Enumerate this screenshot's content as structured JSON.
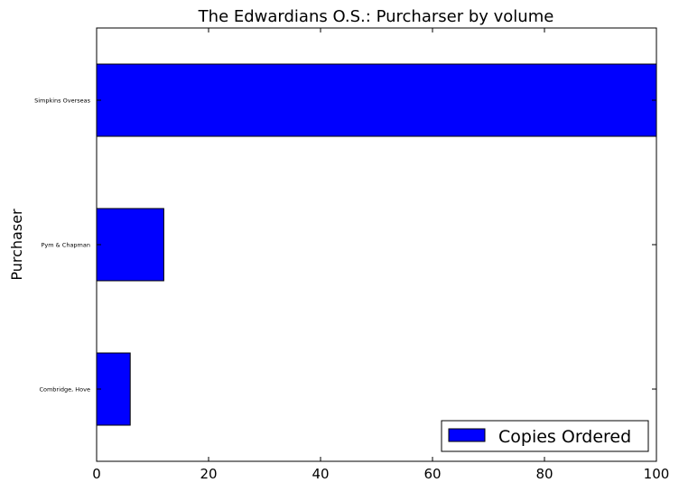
{
  "chart_data": {
    "type": "bar",
    "orientation": "horizontal",
    "title": "The Edwardians O.S.: Purcharser by volume",
    "xlabel": "",
    "ylabel": "Purchaser",
    "categories": [
      "Combridge, Hove",
      "Pym & Chapman",
      "Simpkins Overseas"
    ],
    "series": [
      {
        "name": "Copies Ordered",
        "values": [
          6,
          12,
          105
        ],
        "color": "#0000ff"
      }
    ],
    "xlim": [
      0,
      100
    ],
    "xticks": [
      "0",
      "20",
      "40",
      "60",
      "80",
      "100"
    ],
    "grid": false,
    "legend_position": "lower-right"
  }
}
